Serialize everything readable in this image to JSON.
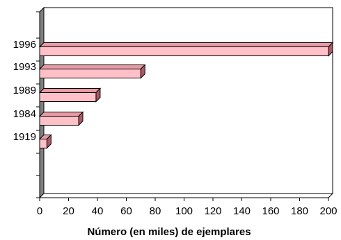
{
  "chart_data": {
    "type": "bar",
    "orientation": "horizontal",
    "style": "3d",
    "categories": [
      "1919",
      "1984",
      "1989",
      "1993",
      "1996"
    ],
    "values": [
      5,
      27,
      39,
      70,
      200
    ],
    "xlabel": "Número (en miles) de ejemplares",
    "ylabel": "",
    "xlim": [
      0,
      200
    ],
    "x_ticks": [
      0,
      20,
      40,
      60,
      80,
      100,
      120,
      140,
      160,
      180,
      200
    ],
    "grid": false,
    "legend": "none",
    "colors": {
      "bar_front": "#ffc0c8",
      "bar_top": "#e89aa4",
      "bar_side": "#a85a64",
      "wall": "#808080"
    }
  }
}
